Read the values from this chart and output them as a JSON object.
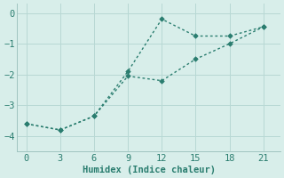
{
  "line1_x": [
    0,
    3,
    6,
    9,
    12,
    15,
    18,
    21
  ],
  "line1_y": [
    -3.6,
    -3.8,
    -3.35,
    -1.9,
    -0.2,
    -0.75,
    -0.75,
    -0.45
  ],
  "line2_x": [
    0,
    3,
    6,
    9,
    12,
    15,
    18,
    21
  ],
  "line2_y": [
    -3.6,
    -3.8,
    -3.35,
    -2.05,
    -2.2,
    -1.5,
    -1.0,
    -0.45
  ],
  "line_color": "#2a7d6f",
  "bg_color": "#d8eeea",
  "grid_color": "#b8d8d4",
  "spine_color": "#a0c4c0",
  "xlabel": "Humidex (Indice chaleur)",
  "xlabel_fontsize": 7.5,
  "tick_fontsize": 7.5,
  "ylim": [
    -4.5,
    0.3
  ],
  "xlim": [
    -0.8,
    22.5
  ],
  "xticks": [
    0,
    3,
    6,
    9,
    12,
    15,
    18,
    21
  ],
  "yticks": [
    0,
    -1,
    -2,
    -3,
    -4
  ],
  "marker": "D",
  "markersize": 2.8,
  "linewidth1": 1.0,
  "linewidth2": 1.0
}
